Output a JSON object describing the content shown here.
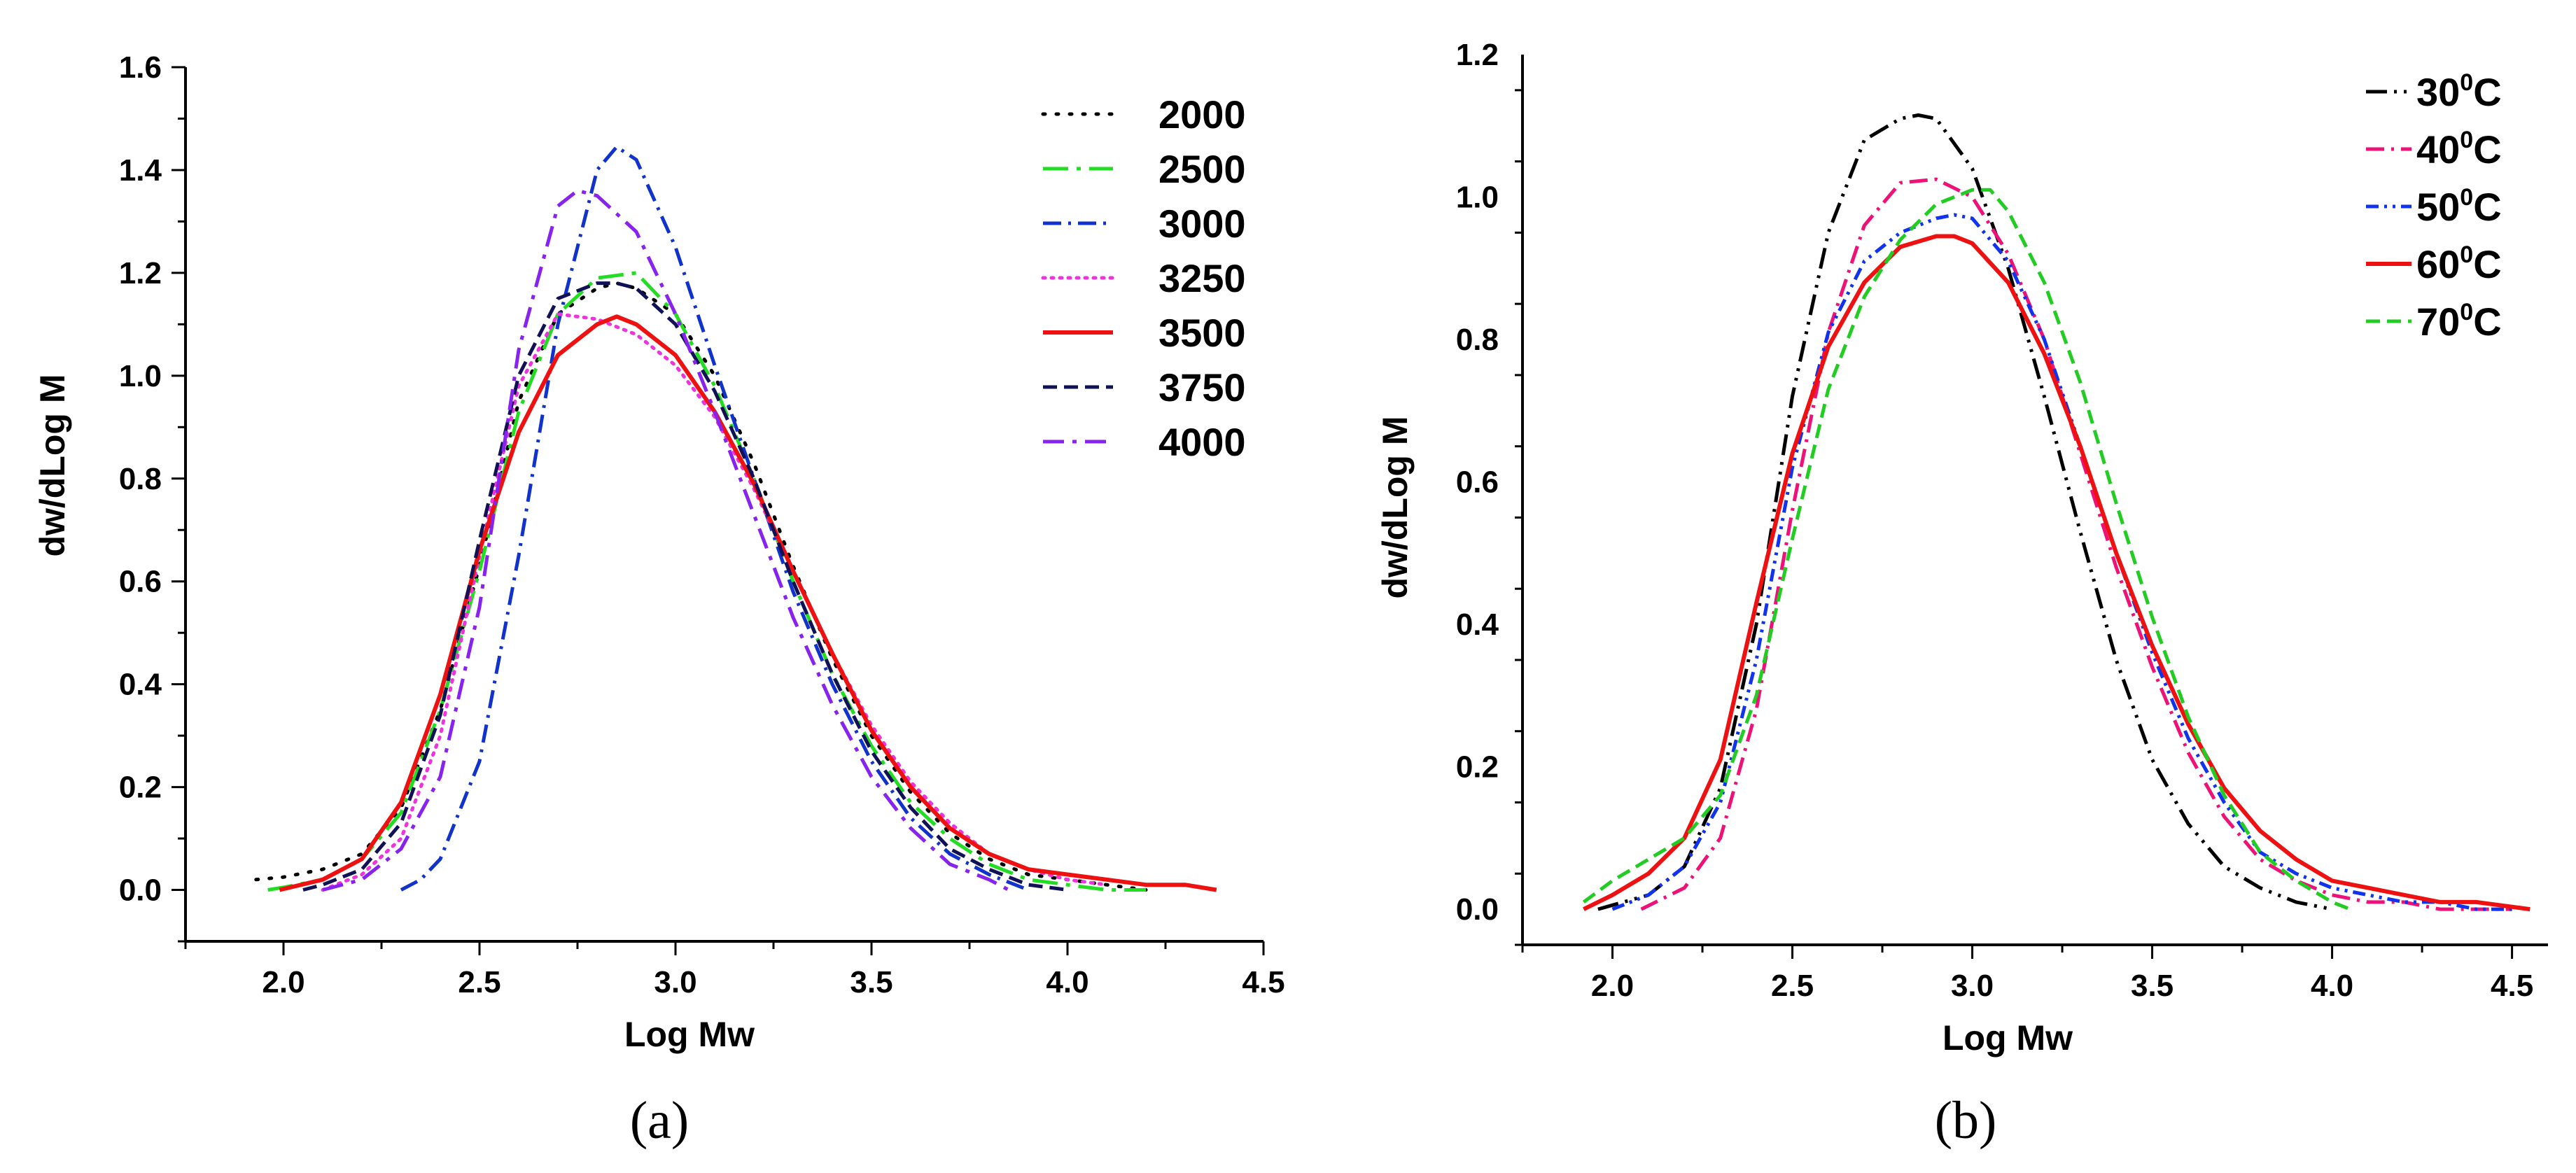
{
  "chart_data": [
    {
      "panel": "a",
      "type": "line",
      "caption": "(a)",
      "xlabel": "Log Mw",
      "ylabel": "dw/dLog M",
      "xlim": [
        1.75,
        4.5
      ],
      "ylim": [
        -0.1,
        1.6
      ],
      "xticks": [
        2.0,
        2.5,
        3.0,
        3.5,
        4.0,
        4.5
      ],
      "xtick_labels": [
        "2.0",
        "2.5",
        "3.0",
        "3.5",
        "4.0",
        "4.5"
      ],
      "yticks": [
        0.0,
        0.2,
        0.4,
        0.6,
        0.8,
        1.0,
        1.2,
        1.4,
        1.6
      ],
      "ytick_labels": [
        "0.0",
        "0.2",
        "0.4",
        "0.6",
        "0.8",
        "1.0",
        "1.2",
        "1.4",
        "1.6"
      ],
      "legend_position": "top-right",
      "series": [
        {
          "name": "2000",
          "color": "#000000",
          "dash": "dot",
          "x": [
            1.93,
            2.0,
            2.1,
            2.2,
            2.3,
            2.4,
            2.5,
            2.6,
            2.7,
            2.8,
            2.85,
            2.9,
            3.0,
            3.1,
            3.2,
            3.3,
            3.4,
            3.5,
            3.6,
            3.7,
            3.8,
            3.9,
            4.0,
            4.1,
            4.2
          ],
          "y": [
            0.02,
            0.025,
            0.04,
            0.07,
            0.16,
            0.35,
            0.63,
            0.95,
            1.12,
            1.17,
            1.18,
            1.17,
            1.12,
            1.0,
            0.83,
            0.63,
            0.45,
            0.3,
            0.19,
            0.11,
            0.06,
            0.03,
            0.02,
            0.01,
            0.0
          ]
        },
        {
          "name": "2500",
          "color": "#22dd22",
          "dash": "dashdot-long",
          "x": [
            1.96,
            2.0,
            2.1,
            2.2,
            2.3,
            2.4,
            2.5,
            2.6,
            2.7,
            2.8,
            2.9,
            3.0,
            3.1,
            3.2,
            3.3,
            3.4,
            3.5,
            3.6,
            3.7,
            3.8,
            3.9,
            4.0,
            4.1,
            4.2
          ],
          "y": [
            0.0,
            0.005,
            0.02,
            0.06,
            0.15,
            0.35,
            0.62,
            0.93,
            1.12,
            1.19,
            1.2,
            1.12,
            0.98,
            0.8,
            0.6,
            0.42,
            0.28,
            0.17,
            0.1,
            0.05,
            0.02,
            0.01,
            0.0,
            0.0
          ]
        },
        {
          "name": "3000",
          "color": "#1133cc",
          "dash": "dashdot",
          "x": [
            2.3,
            2.35,
            2.4,
            2.5,
            2.6,
            2.7,
            2.8,
            2.85,
            2.9,
            3.0,
            3.1,
            3.2,
            3.3,
            3.4,
            3.5,
            3.6,
            3.7,
            3.8,
            3.9
          ],
          "y": [
            0.0,
            0.02,
            0.06,
            0.25,
            0.65,
            1.1,
            1.4,
            1.445,
            1.42,
            1.25,
            1.02,
            0.8,
            0.58,
            0.4,
            0.25,
            0.14,
            0.07,
            0.03,
            0.0
          ]
        },
        {
          "name": "3250",
          "color": "#ee33dd",
          "dash": "dot-fine",
          "x": [
            2.1,
            2.2,
            2.3,
            2.4,
            2.5,
            2.6,
            2.7,
            2.8,
            2.9,
            3.0,
            3.1,
            3.2,
            3.3,
            3.4,
            3.5,
            3.6,
            3.7,
            3.8,
            3.9,
            4.0,
            4.1
          ],
          "y": [
            0.0,
            0.03,
            0.1,
            0.3,
            0.65,
            0.98,
            1.12,
            1.11,
            1.08,
            1.02,
            0.92,
            0.78,
            0.62,
            0.46,
            0.32,
            0.21,
            0.13,
            0.07,
            0.04,
            0.02,
            0.01
          ]
        },
        {
          "name": "3500",
          "color": "#ee1111",
          "dash": "solid",
          "x": [
            1.99,
            2.1,
            2.2,
            2.3,
            2.4,
            2.5,
            2.6,
            2.7,
            2.8,
            2.85,
            2.9,
            3.0,
            3.1,
            3.2,
            3.3,
            3.4,
            3.5,
            3.6,
            3.7,
            3.8,
            3.9,
            4.0,
            4.1,
            4.2,
            4.3,
            4.38
          ],
          "y": [
            0.0,
            0.02,
            0.06,
            0.17,
            0.38,
            0.66,
            0.89,
            1.04,
            1.1,
            1.115,
            1.1,
            1.04,
            0.93,
            0.79,
            0.62,
            0.46,
            0.31,
            0.2,
            0.12,
            0.07,
            0.04,
            0.03,
            0.02,
            0.01,
            0.01,
            0.0
          ]
        },
        {
          "name": "3750",
          "color": "#111155",
          "dash": "dash",
          "x": [
            2.05,
            2.1,
            2.2,
            2.3,
            2.4,
            2.5,
            2.6,
            2.7,
            2.8,
            2.85,
            2.9,
            3.0,
            3.1,
            3.2,
            3.3,
            3.4,
            3.5,
            3.6,
            3.7,
            3.8,
            3.9,
            4.0
          ],
          "y": [
            0.0,
            0.01,
            0.04,
            0.13,
            0.34,
            0.68,
            1.0,
            1.15,
            1.18,
            1.18,
            1.17,
            1.1,
            0.97,
            0.8,
            0.6,
            0.42,
            0.27,
            0.16,
            0.08,
            0.04,
            0.01,
            0.0
          ]
        },
        {
          "name": "4000",
          "color": "#8822ee",
          "dash": "dashdot-heavy",
          "x": [
            2.1,
            2.2,
            2.3,
            2.4,
            2.5,
            2.6,
            2.7,
            2.75,
            2.8,
            2.9,
            3.0,
            3.1,
            3.2,
            3.3,
            3.4,
            3.5,
            3.6,
            3.7,
            3.8,
            3.85
          ],
          "y": [
            0.0,
            0.02,
            0.08,
            0.22,
            0.55,
            1.05,
            1.33,
            1.36,
            1.35,
            1.28,
            1.12,
            0.93,
            0.73,
            0.53,
            0.36,
            0.22,
            0.12,
            0.05,
            0.02,
            0.0
          ]
        }
      ]
    },
    {
      "panel": "b",
      "type": "line",
      "caption": "(b)",
      "xlabel": "Log Mw",
      "ylabel": "dw/dLog M",
      "xlim": [
        1.75,
        4.6
      ],
      "ylim": [
        -0.05,
        1.2
      ],
      "xticks": [
        2.0,
        2.5,
        3.0,
        3.5,
        4.0,
        4.5
      ],
      "xtick_labels": [
        "2.0",
        "2.5",
        "3.0",
        "3.5",
        "4.0",
        "4.5"
      ],
      "yticks": [
        0.0,
        0.2,
        0.4,
        0.6,
        0.8,
        1.0,
        1.2
      ],
      "ytick_labels": [
        "0.0",
        "0.2",
        "0.4",
        "0.6",
        "0.8",
        "1.0",
        "1.2"
      ],
      "legend_position": "top-right",
      "series": [
        {
          "name": "30",
          "unit_sup": "0",
          "unit": "C",
          "color": "#000000",
          "dash": "dashdotdot",
          "x": [
            1.96,
            2.1,
            2.2,
            2.3,
            2.4,
            2.5,
            2.6,
            2.7,
            2.8,
            2.85,
            2.9,
            3.0,
            3.1,
            3.2,
            3.3,
            3.4,
            3.5,
            3.6,
            3.7,
            3.8,
            3.9,
            4.0
          ],
          "y": [
            0.0,
            0.02,
            0.06,
            0.17,
            0.4,
            0.72,
            0.95,
            1.08,
            1.11,
            1.115,
            1.11,
            1.04,
            0.9,
            0.72,
            0.53,
            0.35,
            0.21,
            0.12,
            0.06,
            0.03,
            0.01,
            0.0
          ]
        },
        {
          "name": "40",
          "unit_sup": "0",
          "unit": "C",
          "color": "#ee1177",
          "dash": "dashdot",
          "x": [
            2.08,
            2.2,
            2.3,
            2.4,
            2.5,
            2.6,
            2.7,
            2.8,
            2.9,
            3.0,
            3.1,
            3.2,
            3.3,
            3.4,
            3.5,
            3.6,
            3.7,
            3.8,
            3.9,
            4.0,
            4.1,
            4.2,
            4.3,
            4.4,
            4.5
          ],
          "y": [
            0.0,
            0.03,
            0.1,
            0.28,
            0.56,
            0.81,
            0.96,
            1.02,
            1.025,
            1.0,
            0.92,
            0.8,
            0.64,
            0.48,
            0.34,
            0.22,
            0.13,
            0.07,
            0.04,
            0.02,
            0.01,
            0.01,
            0.0,
            0.0,
            0.0
          ]
        },
        {
          "name": "50",
          "unit_sup": "0",
          "unit": "C",
          "color": "#1133ee",
          "dash": "dashdotdot-fine",
          "x": [
            2.0,
            2.1,
            2.2,
            2.3,
            2.4,
            2.5,
            2.6,
            2.7,
            2.8,
            2.9,
            2.95,
            3.0,
            3.1,
            3.2,
            3.3,
            3.4,
            3.5,
            3.6,
            3.7,
            3.8,
            3.9,
            4.0,
            4.1,
            4.2,
            4.3,
            4.4,
            4.5
          ],
          "y": [
            0.0,
            0.02,
            0.06,
            0.15,
            0.35,
            0.62,
            0.81,
            0.91,
            0.95,
            0.97,
            0.975,
            0.97,
            0.91,
            0.8,
            0.65,
            0.5,
            0.36,
            0.24,
            0.15,
            0.08,
            0.05,
            0.03,
            0.02,
            0.01,
            0.01,
            0.0,
            0.0
          ]
        },
        {
          "name": "60",
          "unit_sup": "0",
          "unit": "C",
          "color": "#ee1111",
          "dash": "solid",
          "x": [
            1.92,
            2.0,
            2.1,
            2.2,
            2.3,
            2.4,
            2.5,
            2.6,
            2.7,
            2.8,
            2.9,
            2.95,
            3.0,
            3.1,
            3.2,
            3.3,
            3.4,
            3.5,
            3.6,
            3.7,
            3.8,
            3.9,
            4.0,
            4.1,
            4.2,
            4.3,
            4.4,
            4.55
          ],
          "y": [
            0.0,
            0.02,
            0.05,
            0.1,
            0.21,
            0.43,
            0.64,
            0.79,
            0.88,
            0.93,
            0.945,
            0.945,
            0.935,
            0.88,
            0.78,
            0.65,
            0.5,
            0.37,
            0.26,
            0.17,
            0.11,
            0.07,
            0.04,
            0.03,
            0.02,
            0.01,
            0.01,
            0.0
          ]
        },
        {
          "name": "70",
          "unit_sup": "0",
          "unit": "C",
          "color": "#22cc22",
          "dash": "dash",
          "x": [
            1.92,
            2.0,
            2.1,
            2.2,
            2.3,
            2.4,
            2.5,
            2.6,
            2.7,
            2.8,
            2.9,
            3.0,
            3.05,
            3.1,
            3.2,
            3.3,
            3.4,
            3.5,
            3.6,
            3.7,
            3.8,
            3.9,
            4.0,
            4.05
          ],
          "y": [
            0.01,
            0.04,
            0.07,
            0.1,
            0.16,
            0.3,
            0.52,
            0.73,
            0.86,
            0.94,
            0.99,
            1.01,
            1.01,
            0.98,
            0.88,
            0.74,
            0.57,
            0.41,
            0.27,
            0.16,
            0.08,
            0.04,
            0.01,
            0.0
          ]
        }
      ]
    }
  ]
}
